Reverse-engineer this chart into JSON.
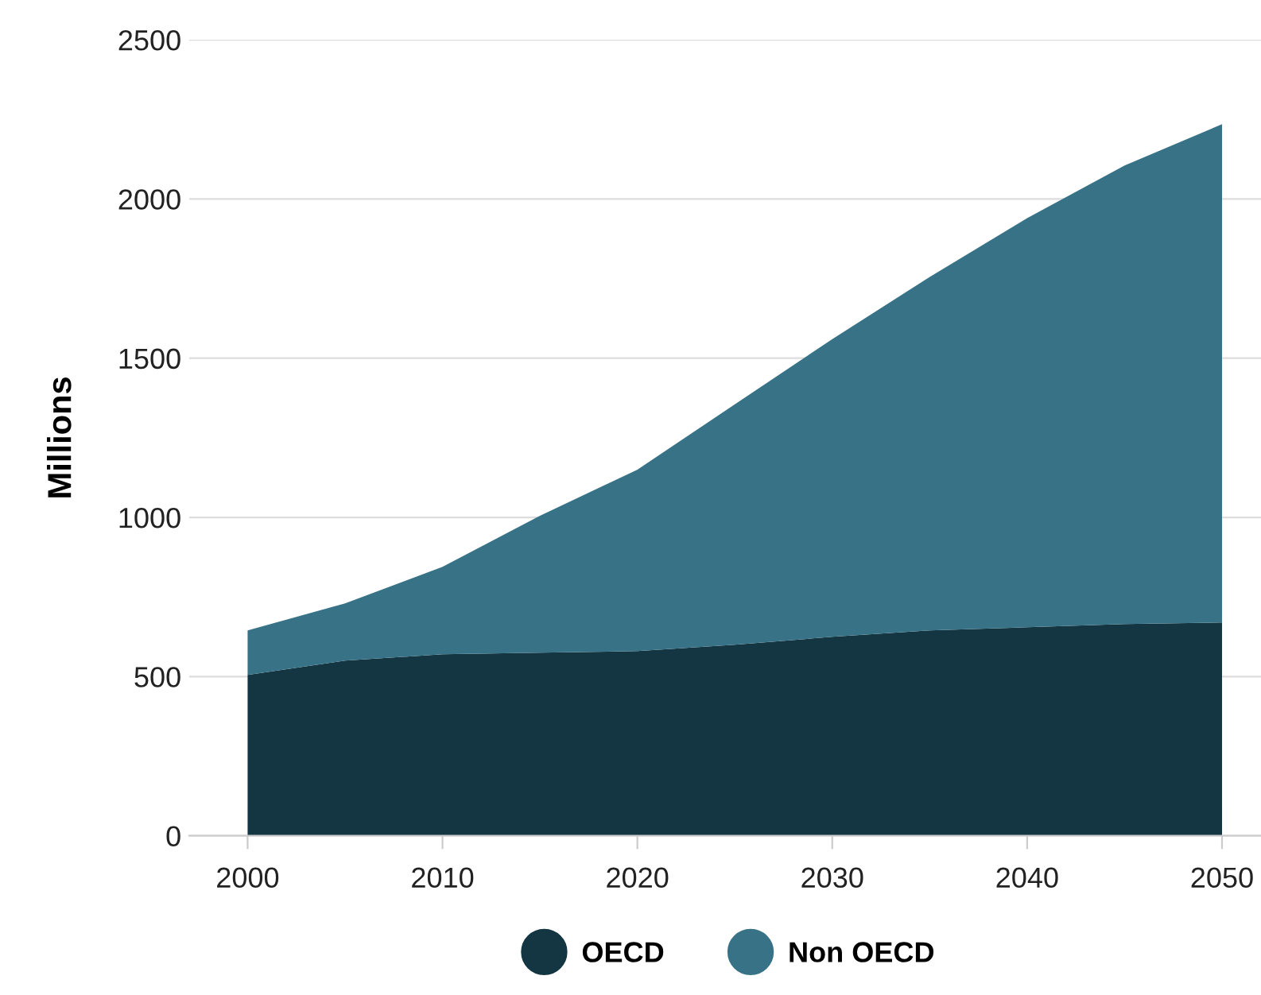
{
  "chart_data": {
    "type": "area",
    "stacked": true,
    "ylabel": "Millions",
    "x": [
      2000,
      2005,
      2010,
      2015,
      2020,
      2025,
      2030,
      2035,
      2040,
      2045,
      2050
    ],
    "series": [
      {
        "name": "OECD",
        "color": "#133642",
        "values": [
          505,
          550,
          570,
          575,
          580,
          600,
          625,
          645,
          655,
          665,
          670
        ]
      },
      {
        "name": "Non OECD",
        "color": "#387287",
        "values": [
          140,
          180,
          275,
          430,
          570,
          755,
          935,
          1110,
          1285,
          1440,
          1565
        ]
      }
    ],
    "xlim": [
      1997,
      2052
    ],
    "xticks": [
      2000,
      2010,
      2020,
      2030,
      2040,
      2050
    ],
    "ylim": [
      0,
      2500
    ],
    "yticks": [
      0,
      500,
      1000,
      1500,
      2000,
      2500
    ],
    "grid": "y",
    "legend": "bottom",
    "marker": "none"
  }
}
